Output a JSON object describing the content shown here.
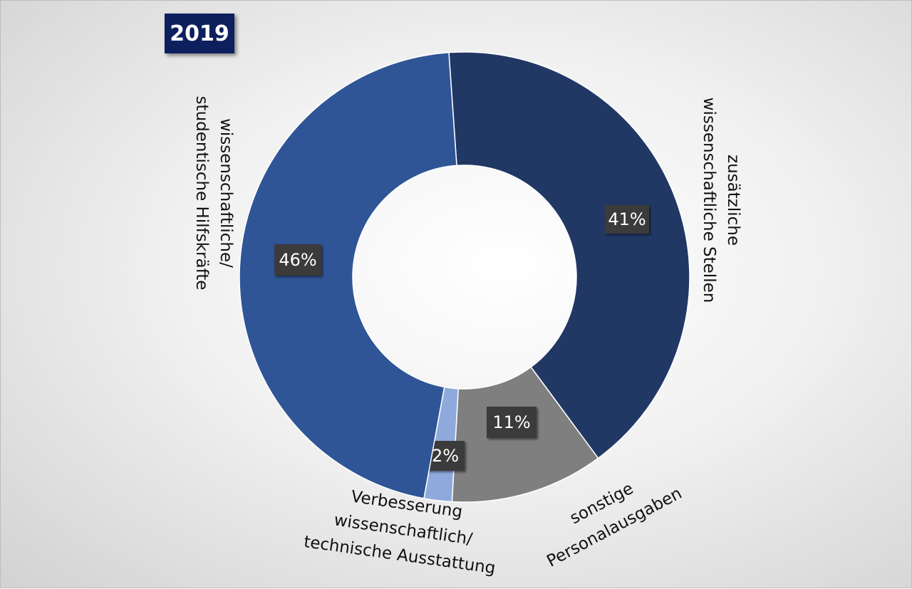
{
  "chart_data": {
    "type": "pie",
    "variant": "donut",
    "title": "2019",
    "slices": [
      {
        "id": "zusaetzliche",
        "label": "zusätzliche wissenschaftliche Stellen",
        "label_lines": [
          "zusätzliche",
          "wissenschaftliche Stellen"
        ],
        "value": 41,
        "display": "41%",
        "color": "#213865"
      },
      {
        "id": "sonstige",
        "label": "sonstige Personalausgaben",
        "label_lines": [
          "sonstige",
          "Personalausgaben"
        ],
        "value": 11,
        "display": "11%",
        "color": "#7f7f7f"
      },
      {
        "id": "verbesserung",
        "label": "Verbesserung wissenschaftlich/ technische Ausstattung",
        "label_lines": [
          "Verbesserung",
          "wissenschaftlich/",
          "technische Ausstattung"
        ],
        "value": 2,
        "display": "2%",
        "color": "#8eaadc"
      },
      {
        "id": "hilfskraefte",
        "label": "wissenschaftliche/ studentische Hilfskräfte",
        "label_lines": [
          "wissenschaftliche/",
          "studentische Hilfskräfte"
        ],
        "value": 46,
        "display": "46%",
        "color": "#2f5597"
      }
    ]
  }
}
